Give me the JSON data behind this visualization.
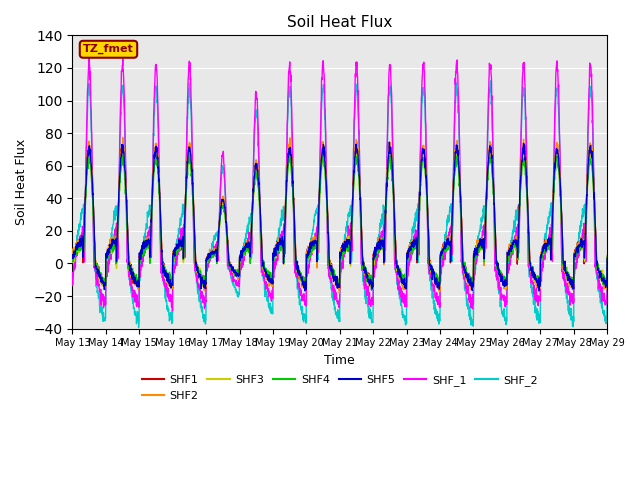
{
  "title": "Soil Heat Flux",
  "xlabel": "Time",
  "ylabel": "Soil Heat Flux",
  "ylim": [
    -40,
    140
  ],
  "yticks": [
    -40,
    -20,
    0,
    20,
    40,
    60,
    80,
    100,
    120,
    140
  ],
  "annotation_text": "TZ_fmet",
  "annotation_color": "#8B0000",
  "annotation_bg": "#FFD700",
  "series_colors": {
    "SHF1": "#CC0000",
    "SHF2": "#FF8C00",
    "SHF3": "#CCCC00",
    "SHF4": "#00CC00",
    "SHF5": "#0000CC",
    "SHF_1": "#FF00FF",
    "SHF_2": "#00CCCC"
  },
  "background_color": "#E8E8E8",
  "n_days": 16,
  "start_day": 13,
  "points_per_day": 144
}
